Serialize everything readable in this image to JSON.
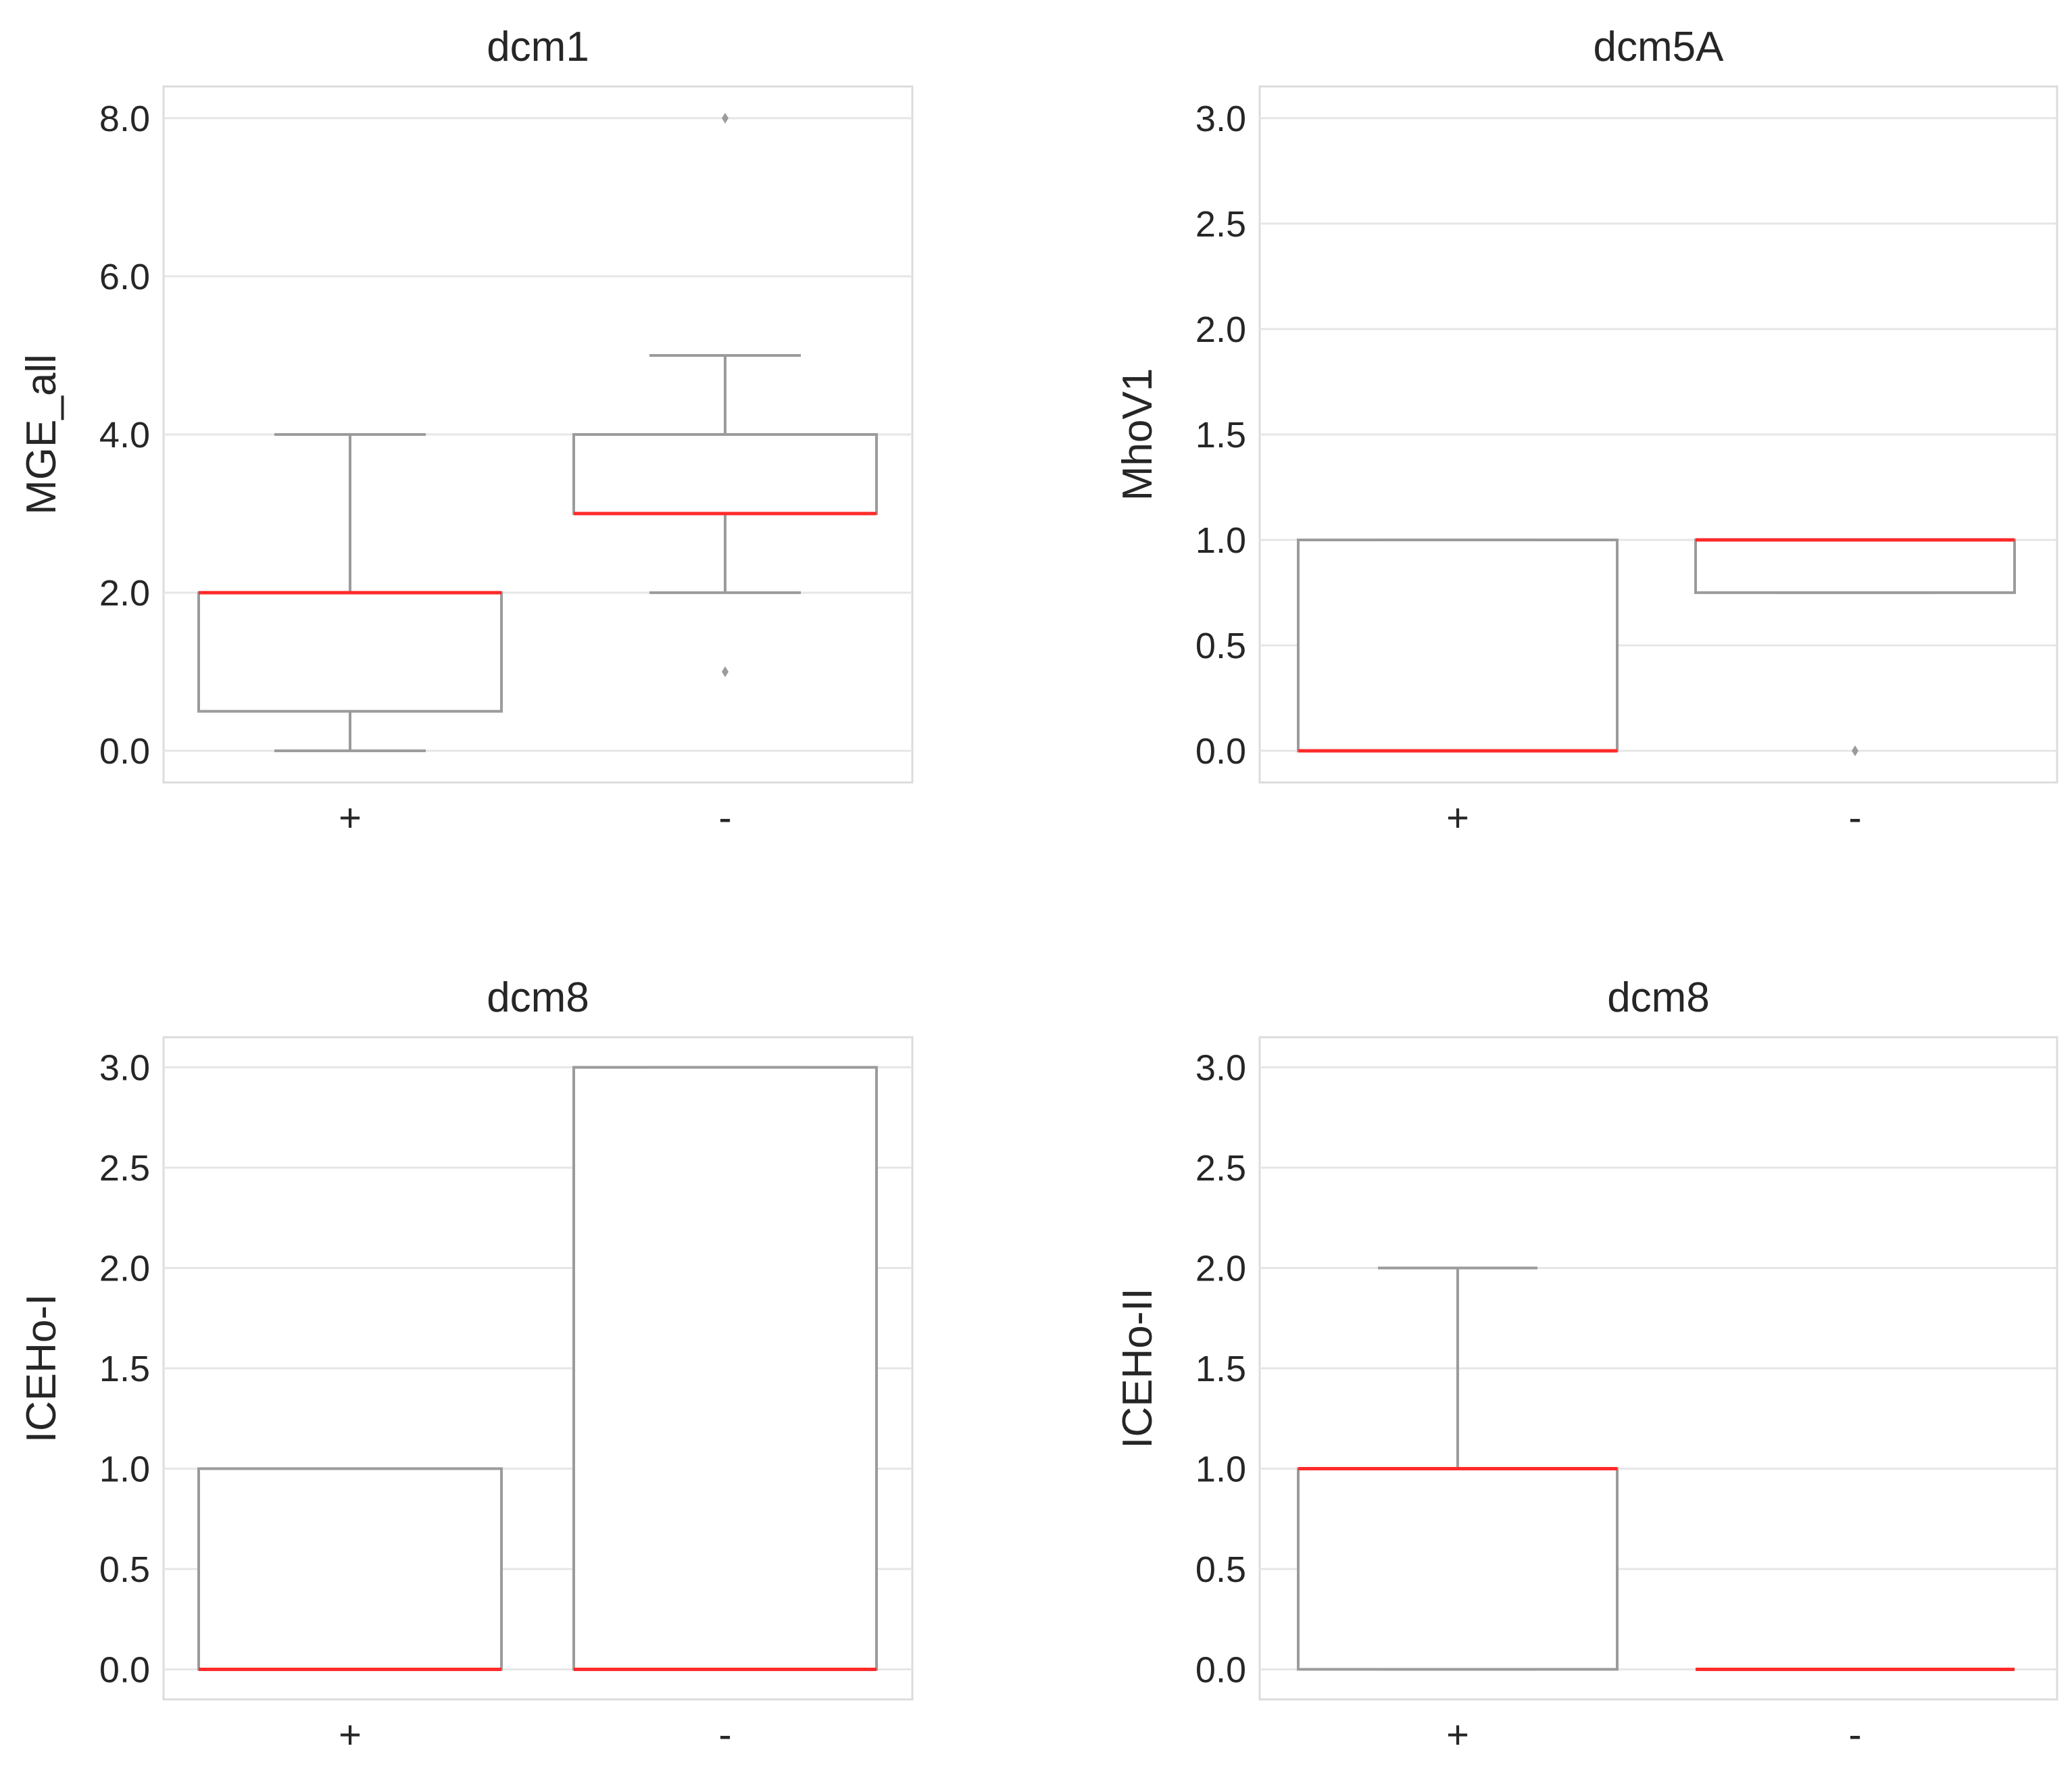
{
  "figure": {
    "colors": {
      "box_edge": "#9b9b9b",
      "median": "#ff2a2a",
      "grid": "#e6e6e6",
      "frame": "#dcdcdc",
      "outlier": "#9b9b9b"
    }
  },
  "chart_data": [
    {
      "type": "box",
      "title": "dcm1",
      "xlabel": "",
      "ylabel": "MGE_all",
      "categories": [
        "+",
        "-"
      ],
      "yticks": [
        "0.0",
        "2.0",
        "4.0",
        "6.0",
        "8.0"
      ],
      "ytick_values": [
        0,
        2,
        4,
        6,
        8
      ],
      "ylim": [
        -0.4,
        8.4
      ],
      "grid": true,
      "boxes": [
        {
          "category": "+",
          "whisker_low": 0.0,
          "q1": 0.5,
          "median": 2.0,
          "q3": 2.0,
          "whisker_high": 4.0,
          "outliers": []
        },
        {
          "category": "-",
          "whisker_low": 2.0,
          "q1": 3.0,
          "median": 3.0,
          "q3": 4.0,
          "whisker_high": 5.0,
          "outliers": [
            1.0,
            8.0
          ]
        }
      ]
    },
    {
      "type": "box",
      "title": "dcm5A",
      "xlabel": "",
      "ylabel": "MhoV1",
      "categories": [
        "+",
        "-"
      ],
      "yticks": [
        "0.0",
        "0.5",
        "1.0",
        "1.5",
        "2.0",
        "2.5",
        "3.0"
      ],
      "ytick_values": [
        0,
        0.5,
        1.0,
        1.5,
        2.0,
        2.5,
        3.0
      ],
      "ylim": [
        -0.15,
        3.15
      ],
      "grid": true,
      "boxes": [
        {
          "category": "+",
          "whisker_low": 0.0,
          "q1": 0.0,
          "median": 0.0,
          "q3": 1.0,
          "whisker_high": 1.0,
          "outliers": []
        },
        {
          "category": "-",
          "whisker_low": 0.75,
          "q1": 0.75,
          "median": 1.0,
          "q3": 1.0,
          "whisker_high": 1.0,
          "outliers": [
            0.0
          ]
        }
      ]
    },
    {
      "type": "box",
      "title": "dcm8",
      "xlabel": "",
      "ylabel": "ICEHo-I",
      "categories": [
        "+",
        "-"
      ],
      "yticks": [
        "0.0",
        "0.5",
        "1.0",
        "1.5",
        "2.0",
        "2.5",
        "3.0"
      ],
      "ytick_values": [
        0,
        0.5,
        1.0,
        1.5,
        2.0,
        2.5,
        3.0
      ],
      "ylim": [
        -0.15,
        3.15
      ],
      "grid": true,
      "boxes": [
        {
          "category": "+",
          "whisker_low": 0.0,
          "q1": 0.0,
          "median": 0.0,
          "q3": 1.0,
          "whisker_high": 1.0,
          "outliers": []
        },
        {
          "category": "-",
          "whisker_low": 0.0,
          "q1": 0.0,
          "median": 0.0,
          "q3": 3.0,
          "whisker_high": 3.0,
          "outliers": []
        }
      ]
    },
    {
      "type": "box",
      "title": "dcm8",
      "xlabel": "",
      "ylabel": "ICEHo-II",
      "categories": [
        "+",
        "-"
      ],
      "yticks": [
        "0.0",
        "0.5",
        "1.0",
        "1.5",
        "2.0",
        "2.5",
        "3.0"
      ],
      "ytick_values": [
        0,
        0.5,
        1.0,
        1.5,
        2.0,
        2.5,
        3.0
      ],
      "ylim": [
        -0.15,
        3.15
      ],
      "grid": true,
      "boxes": [
        {
          "category": "+",
          "whisker_low": 0.0,
          "q1": 0.0,
          "median": 1.0,
          "q3": 1.0,
          "whisker_high": 2.0,
          "outliers": []
        },
        {
          "category": "-",
          "whisker_low": 0.0,
          "q1": 0.0,
          "median": 0.0,
          "q3": 0.0,
          "whisker_high": 0.0,
          "outliers": []
        }
      ]
    }
  ]
}
